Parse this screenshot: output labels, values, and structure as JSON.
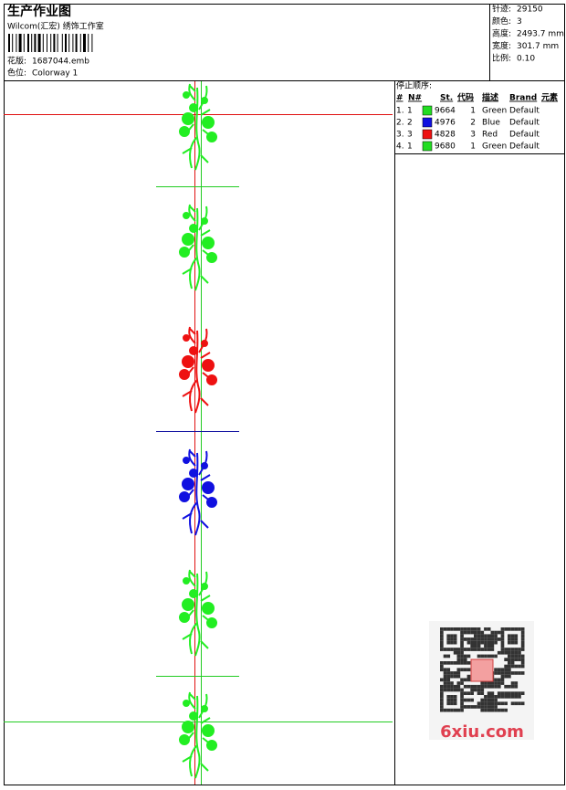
{
  "header": {
    "title": "生产作业图",
    "company": "Wilcom(汇宏) 绣饰工作室",
    "design_label": "花版:",
    "design": "1687044.emb",
    "colorway_label": "色位:",
    "colorway": "Colorway 1"
  },
  "stats": [
    {
      "label": "针迹:",
      "value": "29150"
    },
    {
      "label": "颜色:",
      "value": "3"
    },
    {
      "label": "高度:",
      "value": "2493.7 mm"
    },
    {
      "label": "宽度:",
      "value": "301.7 mm"
    },
    {
      "label": "比例:",
      "value": "0.10"
    }
  ],
  "stop_sequence": {
    "title": "停止顺序:",
    "columns": [
      "#",
      "N#",
      "St.",
      "代码",
      "描述",
      "Brand",
      "元素"
    ],
    "rows": [
      {
        "index": "1.",
        "n": "1",
        "swatch": "#22dd22",
        "st": "9664",
        "code": "1",
        "desc": "Green",
        "brand": "Default"
      },
      {
        "index": "2.",
        "n": "2",
        "swatch": "#1010e0",
        "st": "4976",
        "code": "2",
        "desc": "Blue",
        "brand": "Default"
      },
      {
        "index": "3.",
        "n": "3",
        "swatch": "#ee1111",
        "st": "4828",
        "code": "3",
        "desc": "Red",
        "brand": "Default"
      },
      {
        "index": "4.",
        "n": "1",
        "swatch": "#22dd22",
        "st": "9680",
        "code": "1",
        "desc": "Green",
        "brand": "Default"
      }
    ]
  },
  "watermark": "6xiu.com"
}
